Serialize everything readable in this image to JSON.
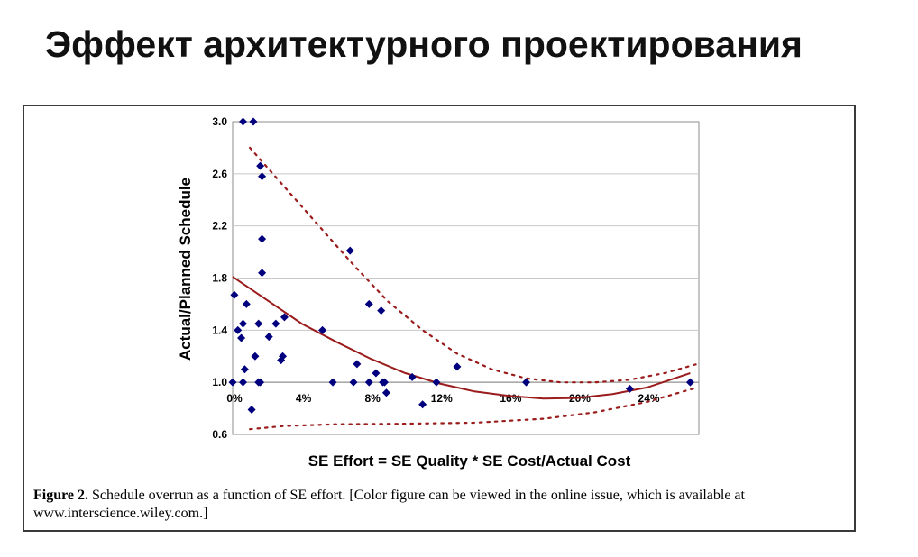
{
  "slide": {
    "title": "Эффект архитектурного проектирования"
  },
  "figure": {
    "caption_label": "Figure 2.",
    "caption_text": " Schedule overrun as a function of SE effort. [Color figure can be viewed in the online issue, which is available at www.interscience.wiley.com.]"
  },
  "chart_data": {
    "type": "scatter",
    "title": "",
    "xlabel": "SE Effort = SE Quality * SE Cost/Actual Cost",
    "ylabel": "Actual/Planned Schedule",
    "xlim": [
      0,
      27
    ],
    "ylim": [
      0.6,
      3.0
    ],
    "x_ticks": [
      0,
      4,
      8,
      12,
      16,
      20,
      24
    ],
    "x_tick_labels": [
      "0%",
      "4%",
      "8%",
      "12%",
      "16%",
      "20%",
      "24%"
    ],
    "y_ticks": [
      0.6,
      1.0,
      1.4,
      1.8,
      2.2,
      2.6,
      3.0
    ],
    "y_tick_labels": [
      "0.6",
      "1.0",
      "1.4",
      "1.8",
      "2.2",
      "2.6",
      "3.0"
    ],
    "grid": "horizontal",
    "colors": {
      "points": "#00007f",
      "trend": "#9b1c1c",
      "bounds": "#9b1c1c"
    },
    "points": [
      [
        0.0,
        1.0
      ],
      [
        0.1,
        1.67
      ],
      [
        0.3,
        1.4
      ],
      [
        0.5,
        1.34
      ],
      [
        0.6,
        1.0
      ],
      [
        0.6,
        1.45
      ],
      [
        0.7,
        1.1
      ],
      [
        0.8,
        1.6
      ],
      [
        0.6,
        3.0
      ],
      [
        1.2,
        3.0
      ],
      [
        1.1,
        0.79
      ],
      [
        1.3,
        1.2
      ],
      [
        1.5,
        1.0
      ],
      [
        1.6,
        1.0
      ],
      [
        1.5,
        1.45
      ],
      [
        1.6,
        2.66
      ],
      [
        1.7,
        2.58
      ],
      [
        1.7,
        2.1
      ],
      [
        1.7,
        1.84
      ],
      [
        2.1,
        1.35
      ],
      [
        2.5,
        1.45
      ],
      [
        2.8,
        1.17
      ],
      [
        2.9,
        1.2
      ],
      [
        3.0,
        1.5
      ],
      [
        5.2,
        1.4
      ],
      [
        5.8,
        1.0
      ],
      [
        6.8,
        2.01
      ],
      [
        7.0,
        1.0
      ],
      [
        7.2,
        1.14
      ],
      [
        7.9,
        1.6
      ],
      [
        7.9,
        1.0
      ],
      [
        8.3,
        1.07
      ],
      [
        8.6,
        1.55
      ],
      [
        8.7,
        1.0
      ],
      [
        8.8,
        1.0
      ],
      [
        8.9,
        0.92
      ],
      [
        10.4,
        1.04
      ],
      [
        11.0,
        0.83
      ],
      [
        11.8,
        1.0
      ],
      [
        13.0,
        1.12
      ],
      [
        17.0,
        1.0
      ],
      [
        23.0,
        0.95
      ],
      [
        26.5,
        1.0
      ]
    ],
    "trend_line": [
      [
        0.0,
        1.81
      ],
      [
        2.0,
        1.63
      ],
      [
        4.0,
        1.45
      ],
      [
        6.0,
        1.31
      ],
      [
        8.0,
        1.18
      ],
      [
        10.0,
        1.07
      ],
      [
        12.0,
        0.99
      ],
      [
        14.0,
        0.93
      ],
      [
        16.0,
        0.895
      ],
      [
        18.0,
        0.875
      ],
      [
        20.0,
        0.88
      ],
      [
        22.0,
        0.91
      ],
      [
        24.0,
        0.96
      ],
      [
        26.5,
        1.07
      ]
    ],
    "upper_bound": [
      [
        1.0,
        2.8
      ],
      [
        3.0,
        2.5
      ],
      [
        5.0,
        2.2
      ],
      [
        7.0,
        1.9
      ],
      [
        9.0,
        1.62
      ],
      [
        11.0,
        1.4
      ],
      [
        13.0,
        1.22
      ],
      [
        15.0,
        1.1
      ],
      [
        17.0,
        1.03
      ],
      [
        19.0,
        1.0
      ],
      [
        21.0,
        1.0
      ],
      [
        23.0,
        1.02
      ],
      [
        25.0,
        1.07
      ],
      [
        26.9,
        1.14
      ]
    ],
    "lower_bound": [
      [
        1.0,
        0.64
      ],
      [
        3.0,
        0.665
      ],
      [
        6.0,
        0.678
      ],
      [
        10.0,
        0.682
      ],
      [
        14.0,
        0.69
      ],
      [
        18.0,
        0.72
      ],
      [
        21.0,
        0.77
      ],
      [
        24.0,
        0.85
      ],
      [
        26.9,
        0.96
      ]
    ]
  }
}
